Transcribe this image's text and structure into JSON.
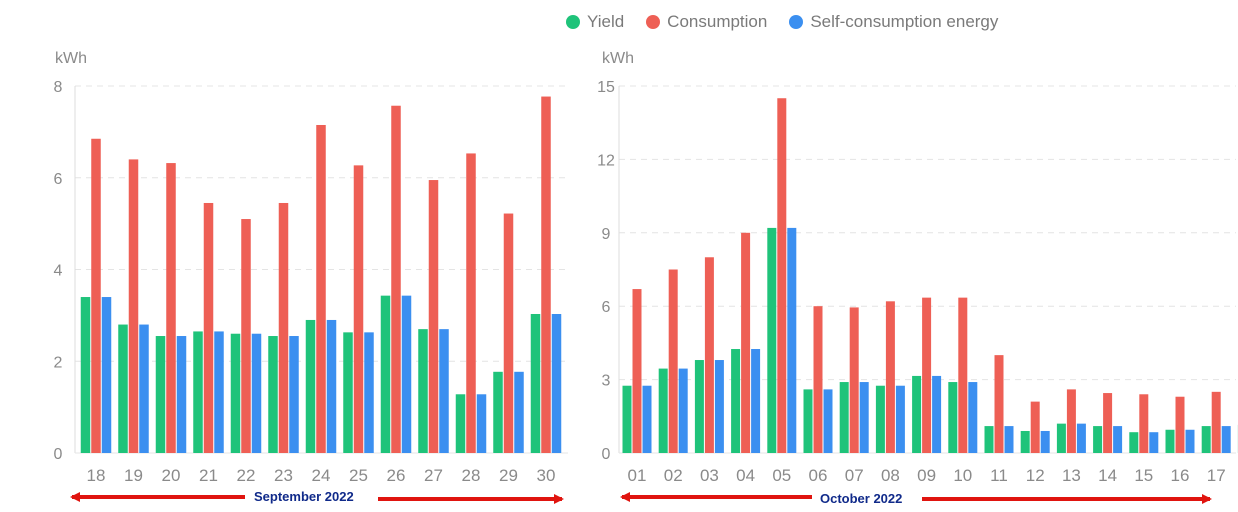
{
  "legend": {
    "yield_label": "Yield",
    "consumption_label": "Consumption",
    "self_label": "Self-consumption energy"
  },
  "colors": {
    "yield": "#1fc37a",
    "consumption": "#ee5f55",
    "self": "#3b8ff0",
    "axis_text": "#8a8a8a",
    "grid": "#e4e4e4",
    "arrow": "#e0140f",
    "period_text": "#102a8a"
  },
  "chart_data": [
    {
      "type": "bar",
      "title": "",
      "ylabel": "kWh",
      "xlabel": "September 2022",
      "ylim": [
        0,
        8
      ],
      "yticks": [
        0,
        2,
        4,
        6,
        8
      ],
      "categories": [
        "18",
        "19",
        "20",
        "21",
        "22",
        "23",
        "24",
        "25",
        "26",
        "27",
        "28",
        "29",
        "30"
      ],
      "series": [
        {
          "name": "Yield",
          "values": [
            3.4,
            2.8,
            2.55,
            2.65,
            2.6,
            2.55,
            2.9,
            2.63,
            3.43,
            2.7,
            1.28,
            1.77,
            3.03
          ]
        },
        {
          "name": "Consumption",
          "values": [
            6.85,
            6.4,
            6.32,
            5.45,
            5.1,
            5.45,
            7.15,
            6.27,
            7.57,
            5.95,
            6.53,
            5.22,
            7.77
          ]
        },
        {
          "name": "Self-consumption energy",
          "values": [
            3.4,
            2.8,
            2.55,
            2.65,
            2.6,
            2.55,
            2.9,
            2.63,
            3.43,
            2.7,
            1.28,
            1.77,
            3.03
          ]
        }
      ],
      "grid": true
    },
    {
      "type": "bar",
      "title": "",
      "ylabel": "kWh",
      "xlabel": "October 2022",
      "ylim": [
        0,
        15
      ],
      "yticks": [
        0,
        3,
        6,
        9,
        12,
        15
      ],
      "categories": [
        "01",
        "02",
        "03",
        "04",
        "05",
        "06",
        "07",
        "08",
        "09",
        "10",
        "11",
        "12",
        "13",
        "14",
        "15",
        "16",
        "17"
      ],
      "series": [
        {
          "name": "Yield",
          "values": [
            2.75,
            3.45,
            3.8,
            4.25,
            9.2,
            2.6,
            2.9,
            2.75,
            3.15,
            2.9,
            1.1,
            0.9,
            1.2,
            1.1,
            0.85,
            0.95,
            1.1
          ]
        },
        {
          "name": "Consumption",
          "values": [
            6.7,
            7.5,
            8.0,
            9.0,
            14.5,
            6.0,
            5.95,
            6.2,
            6.35,
            6.35,
            4.0,
            2.1,
            2.6,
            2.45,
            2.4,
            2.3,
            2.5
          ]
        },
        {
          "name": "Self-consumption energy",
          "values": [
            2.75,
            3.45,
            3.8,
            4.25,
            9.2,
            2.6,
            2.9,
            2.75,
            3.15,
            2.9,
            1.1,
            0.9,
            1.2,
            1.1,
            0.85,
            0.95,
            1.1
          ]
        }
      ],
      "grid": true
    }
  ]
}
